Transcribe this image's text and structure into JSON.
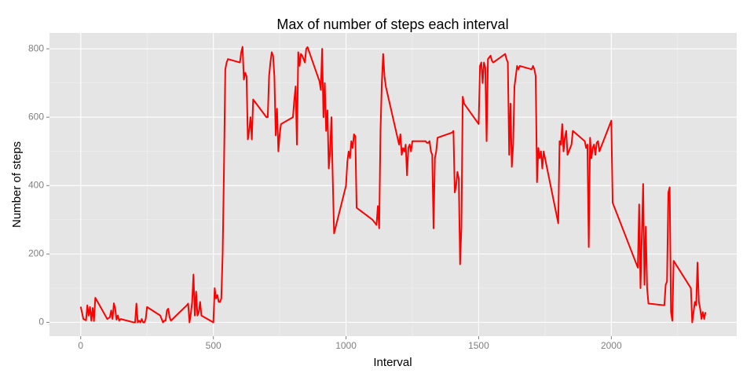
{
  "chart_data": {
    "type": "line",
    "title": "Max of number of steps each interval",
    "x_label": "Interval",
    "y_label": "Number of steps",
    "xlim": [
      -117.75,
      2472.75
    ],
    "ylim": [
      -40.3,
      846.3
    ],
    "xticks": [
      0,
      500,
      1000,
      1500,
      2000
    ],
    "yticks": [
      0,
      200,
      400,
      600,
      800
    ],
    "xminorticks": [
      250,
      750,
      1250,
      1750,
      2250
    ],
    "yminorticks": [
      100,
      300,
      500,
      700
    ],
    "grid": true,
    "color": "#ff0000",
    "x": [
      0,
      10,
      20,
      25,
      30,
      35,
      40,
      45,
      50,
      55,
      100,
      110,
      115,
      120,
      125,
      130,
      135,
      140,
      145,
      150,
      200,
      205,
      210,
      215,
      220,
      225,
      230,
      235,
      240,
      245,
      250,
      300,
      305,
      310,
      315,
      320,
      325,
      330,
      335,
      340,
      400,
      405,
      410,
      415,
      420,
      425,
      430,
      435,
      440,
      445,
      450,
      455,
      500,
      505,
      510,
      515,
      520,
      525,
      530,
      535,
      540,
      545,
      550,
      555,
      600,
      605,
      610,
      615,
      620,
      625,
      630,
      635,
      640,
      645,
      650,
      700,
      705,
      710,
      715,
      720,
      725,
      730,
      735,
      740,
      745,
      750,
      755,
      800,
      805,
      810,
      815,
      820,
      825,
      830,
      835,
      840,
      845,
      850,
      855,
      900,
      905,
      910,
      915,
      920,
      925,
      930,
      935,
      940,
      945,
      950,
      955,
      1000,
      1005,
      1010,
      1015,
      1020,
      1025,
      1030,
      1035,
      1040,
      1100,
      1115,
      1120,
      1125,
      1130,
      1135,
      1140,
      1145,
      1150,
      1200,
      1205,
      1210,
      1215,
      1220,
      1225,
      1230,
      1235,
      1240,
      1245,
      1250,
      1300,
      1305,
      1310,
      1315,
      1320,
      1325,
      1330,
      1335,
      1340,
      1345,
      1400,
      1405,
      1410,
      1415,
      1420,
      1425,
      1430,
      1435,
      1440,
      1445,
      1500,
      1505,
      1510,
      1515,
      1520,
      1525,
      1530,
      1535,
      1540,
      1545,
      1550,
      1555,
      1600,
      1605,
      1610,
      1615,
      1620,
      1625,
      1630,
      1635,
      1640,
      1645,
      1650,
      1655,
      1700,
      1705,
      1710,
      1715,
      1720,
      1725,
      1730,
      1735,
      1740,
      1745,
      1800,
      1805,
      1810,
      1815,
      1820,
      1825,
      1830,
      1835,
      1840,
      1845,
      1850,
      1855,
      1900,
      1905,
      1910,
      1915,
      1920,
      1925,
      1930,
      1935,
      1940,
      1945,
      1950,
      1955,
      2000,
      2005,
      2100,
      2105,
      2110,
      2115,
      2120,
      2125,
      2130,
      2135,
      2140,
      2200,
      2205,
      2210,
      2215,
      2220,
      2225,
      2230,
      2235,
      2300,
      2305,
      2310,
      2315,
      2320,
      2325,
      2330,
      2335,
      2340,
      2345,
      2350,
      2355
    ],
    "values": [
      46,
      10,
      6,
      50,
      20,
      45,
      5,
      42,
      4,
      72,
      10,
      15,
      35,
      10,
      56,
      40,
      8,
      20,
      5,
      10,
      0,
      0,
      55,
      0,
      5,
      0,
      10,
      0,
      0,
      10,
      45,
      20,
      10,
      0,
      5,
      5,
      35,
      40,
      15,
      5,
      50,
      55,
      0,
      25,
      60,
      140,
      20,
      90,
      20,
      30,
      60,
      20,
      0,
      100,
      70,
      80,
      60,
      60,
      70,
      200,
      450,
      740,
      760,
      770,
      760,
      790,
      806,
      710,
      730,
      720,
      535,
      560,
      600,
      535,
      652,
      600,
      600,
      720,
      760,
      790,
      780,
      720,
      547,
      625,
      500,
      550,
      580,
      600,
      650,
      690,
      520,
      790,
      750,
      785,
      780,
      770,
      760,
      800,
      805,
      705,
      680,
      800,
      600,
      700,
      560,
      620,
      450,
      500,
      600,
      420,
      260,
      400,
      470,
      500,
      480,
      530,
      510,
      550,
      545,
      335,
      300,
      285,
      340,
      275,
      560,
      700,
      785,
      720,
      690,
      520,
      550,
      490,
      510,
      500,
      520,
      430,
      510,
      520,
      500,
      530,
      530,
      525,
      525,
      530,
      500,
      490,
      275,
      480,
      500,
      540,
      555,
      560,
      380,
      400,
      440,
      420,
      170,
      280,
      660,
      640,
      580,
      750,
      760,
      700,
      760,
      745,
      530,
      770,
      775,
      780,
      765,
      760,
      785,
      770,
      760,
      490,
      640,
      455,
      520,
      690,
      720,
      750,
      740,
      750,
      740,
      750,
      740,
      720,
      410,
      510,
      480,
      500,
      450,
      500,
      290,
      530,
      520,
      580,
      500,
      540,
      560,
      490,
      500,
      510,
      520,
      560,
      530,
      510,
      520,
      220,
      540,
      480,
      510,
      520,
      490,
      525,
      530,
      500,
      590,
      350,
      160,
      345,
      100,
      250,
      405,
      110,
      280,
      100,
      55,
      50,
      110,
      120,
      380,
      395,
      30,
      5,
      180,
      100,
      0,
      30,
      60,
      50,
      175,
      60,
      40,
      10,
      30,
      10,
      30
    ]
  }
}
